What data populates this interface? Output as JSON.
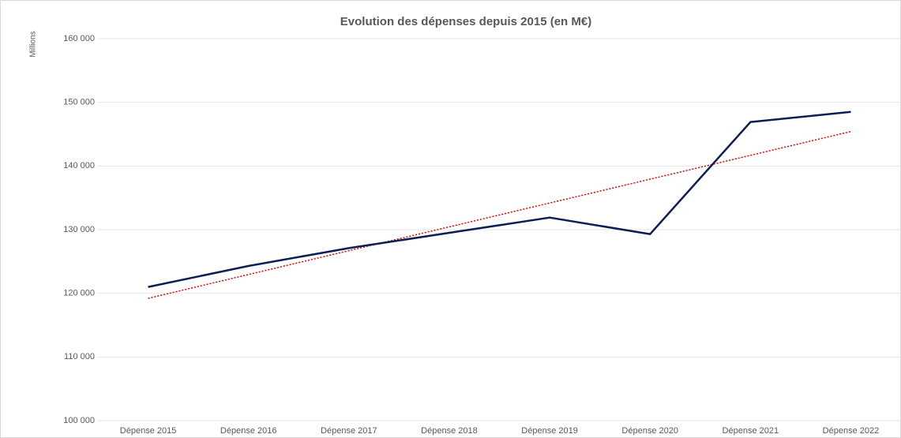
{
  "chart_data": {
    "type": "line",
    "title": "Evolution des dépenses depuis 2015 (en M€)",
    "y_axis_label": "Millions",
    "categories": [
      "Dépense 2015",
      "Dépense 2016",
      "Dépense 2017",
      "Dépense 2018",
      "Dépense 2019",
      "Dépense 2020",
      "Dépense 2021",
      "Dépense 2022"
    ],
    "series": [
      {
        "name": "Dépense",
        "color": "#0c1f55",
        "values": [
          121000,
          124300,
          127100,
          129500,
          131900,
          129300,
          146900,
          148500
        ]
      }
    ],
    "trendline": {
      "color": "#e00000",
      "style": "dotted"
    },
    "ylim": [
      100000,
      160000
    ],
    "yticks": [
      {
        "value": 100000,
        "label": "100 000"
      },
      {
        "value": 110000,
        "label": "110 000"
      },
      {
        "value": 120000,
        "label": "120 000"
      },
      {
        "value": 130000,
        "label": "130 000"
      },
      {
        "value": 140000,
        "label": "140 000"
      },
      {
        "value": 150000,
        "label": "150 000"
      },
      {
        "value": 160000,
        "label": "160 000"
      }
    ],
    "grid": true
  }
}
